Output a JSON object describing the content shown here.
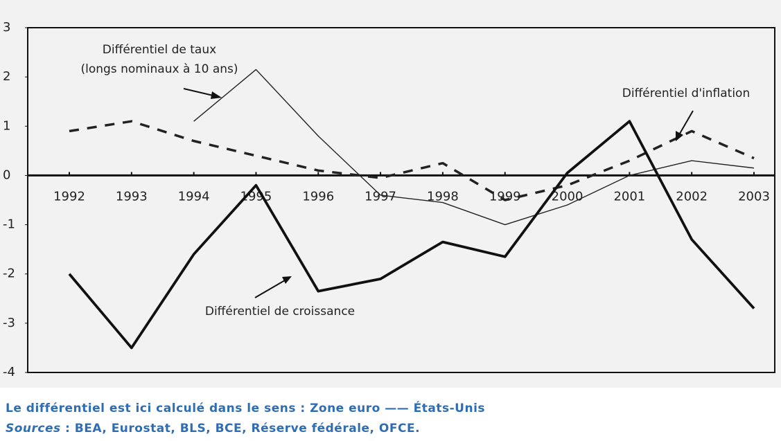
{
  "chart_data": {
    "type": "line",
    "categories": [
      "1992",
      "1993",
      "1994",
      "1995",
      "1996",
      "1997",
      "1998",
      "1999",
      "2000",
      "2001",
      "2002",
      "2003"
    ],
    "series": [
      {
        "name": "Différentiel de taux",
        "name_note": "(longs nominaux à 10 ans)",
        "color": "#222222",
        "style": "thin",
        "values": [
          null,
          null,
          1.1,
          2.15,
          0.8,
          -0.4,
          -0.55,
          -1.0,
          -0.6,
          0.0,
          0.3,
          0.15
        ]
      },
      {
        "name": "Différentiel d'inflation",
        "color": "#222222",
        "style": "dashed",
        "values": [
          0.9,
          1.1,
          0.7,
          0.4,
          0.1,
          -0.05,
          0.25,
          -0.5,
          -0.2,
          0.3,
          0.9,
          0.35
        ]
      },
      {
        "name": "Différentiel de croissance",
        "color": "#111111",
        "style": "thick",
        "values": [
          -2.0,
          -3.5,
          -1.6,
          -0.2,
          -2.35,
          -2.1,
          -1.35,
          -1.65,
          0.05,
          1.1,
          -1.3,
          -2.7
        ]
      }
    ],
    "ylim": [
      -4,
      3
    ],
    "yticks": [
      -4,
      -3,
      -2,
      -1,
      0,
      1,
      2,
      3
    ],
    "notes": [
      "Le différentiel est ici calculé dans le sens : Zone euro —— États-Unis"
    ],
    "source_label": "Sources",
    "source_text": " : BEA, Eurostat, BLS, BCE, Réserve fédérale, OFCE."
  }
}
